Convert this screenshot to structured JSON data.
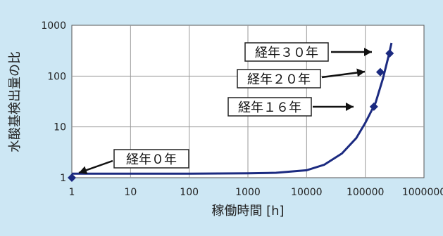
{
  "chart_data": {
    "type": "line",
    "title": "",
    "xlabel": "稼働時間 [h]",
    "ylabel": "水酸基検出量の比",
    "x_scale": "log",
    "y_scale": "log",
    "xlim": [
      1,
      1000000
    ],
    "ylim": [
      1,
      1000
    ],
    "grid": true,
    "x_ticks": [
      "1",
      "10",
      "100",
      "1000",
      "10000",
      "100000",
      "1000000"
    ],
    "y_ticks": [
      "1",
      "10",
      "100",
      "1000"
    ],
    "curve": {
      "x": [
        1,
        10,
        100,
        1000,
        3000,
        10000,
        20000,
        40000,
        70000,
        100000,
        150000,
        200000,
        250000,
        280000
      ],
      "y": [
        1.2,
        1.2,
        1.2,
        1.22,
        1.25,
        1.4,
        1.8,
        3,
        6,
        12,
        30,
        90,
        250,
        450
      ]
    },
    "points": [
      {
        "label": "経年０年",
        "x": 1,
        "y": 1
      },
      {
        "label": "経年１６年",
        "x": 140000,
        "y": 25
      },
      {
        "label": "経年２０年",
        "x": 180000,
        "y": 120
      },
      {
        "label": "経年３０年",
        "x": 260000,
        "y": 280
      }
    ],
    "colors": {
      "background": "#cde7f4",
      "series": "#1b2a80",
      "grid": "#9a9a9a"
    }
  }
}
